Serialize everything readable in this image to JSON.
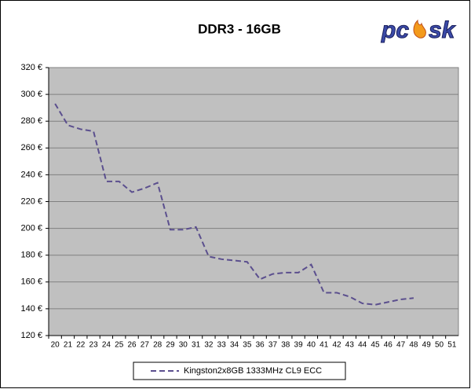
{
  "chart_data": {
    "type": "line",
    "title": "DDR3 - 16GB",
    "logo": [
      "pc",
      "sk"
    ],
    "categories": [
      "20",
      "21",
      "22",
      "23",
      "24",
      "25",
      "26",
      "27",
      "28",
      "29",
      "30",
      "31",
      "32",
      "33",
      "34",
      "35",
      "36",
      "37",
      "38",
      "39",
      "40",
      "41",
      "42",
      "43",
      "44",
      "45",
      "46",
      "47",
      "48",
      "49",
      "50",
      "51"
    ],
    "series": [
      {
        "name": "Kingston2x8GB 1333MHz CL9 ECC",
        "color": "#5b4f8e",
        "values": [
          293,
          277,
          274,
          272.5,
          235,
          235,
          227,
          230,
          234,
          199,
          199,
          201,
          179,
          177,
          176,
          175,
          162,
          166,
          167,
          167,
          173,
          152,
          152,
          149,
          144,
          143,
          145,
          147,
          148,
          null,
          null,
          null
        ]
      }
    ],
    "ylim": [
      120,
      320
    ],
    "yticks": [
      {
        "value": 120,
        "label": "120 €"
      },
      {
        "value": 140,
        "label": "140 €"
      },
      {
        "value": 160,
        "label": "160 €"
      },
      {
        "value": 180,
        "label": "180 €"
      },
      {
        "value": 200,
        "label": "200 €"
      },
      {
        "value": 220,
        "label": "220 €"
      },
      {
        "value": 240,
        "label": "240 €"
      },
      {
        "value": 260,
        "label": "260 €"
      },
      {
        "value": 280,
        "label": "280 €"
      },
      {
        "value": 300,
        "label": "300 €"
      },
      {
        "value": 320,
        "label": "320 €"
      }
    ],
    "grid": true,
    "legend": "bottom"
  }
}
